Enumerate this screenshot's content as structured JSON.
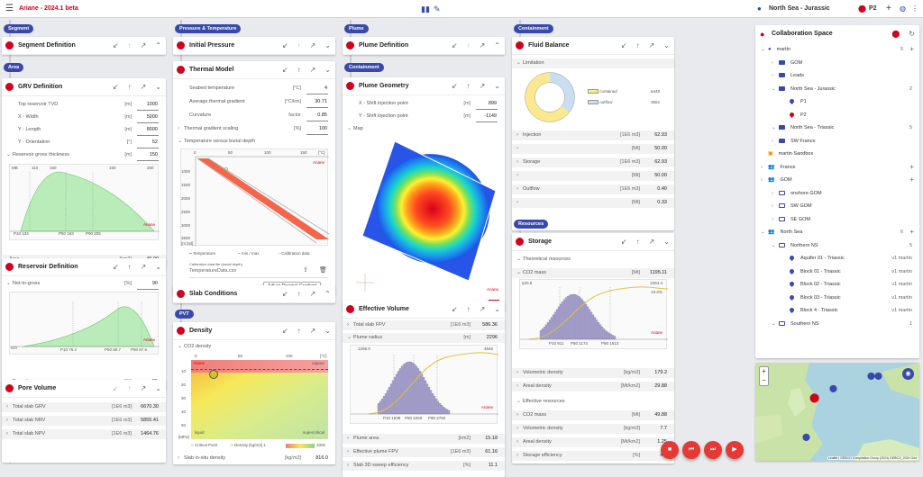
{
  "app": {
    "title": "Ariane - 2024.1 beta",
    "project": "North Sea - Jurassic",
    "location": "P2"
  },
  "lanes": {
    "segment": "Segment",
    "area": "Area",
    "pressure": "Pressure & Temperature",
    "pvt": "PVT",
    "plume": "Plume",
    "containment_plume": "Containment",
    "containment": "Containment",
    "resources": "Resources"
  },
  "segment_def": {
    "title": "Segment Definition"
  },
  "grv": {
    "title": "GRV Definition",
    "rows": [
      {
        "label": "Top reservoir TVD",
        "unit": "[m]",
        "value": "1000"
      },
      {
        "label": "X - Width",
        "unit": "[m]",
        "value": "5000"
      },
      {
        "label": "Y - Length",
        "unit": "[m]",
        "value": "8000"
      },
      {
        "label": "Y - Orientation",
        "unit": "[°]",
        "value": "52"
      },
      {
        "label": "Reservoir gross thickness",
        "unit": "[m]",
        "value": "150"
      }
    ],
    "ticks_top": [
      "110",
      "150",
      "150",
      "250"
    ],
    "tick_prefix": "MB",
    "pvals": {
      "p10": "134",
      "p50": "163",
      "p90": "205"
    },
    "plabels": {
      "p10": "P10",
      "p50": "P50",
      "p90": "P90"
    },
    "brand": "Ariane",
    "area_label": "Area",
    "area_unit": "[km2]",
    "area_value": "40.00"
  },
  "reservoir": {
    "title": "Reservoir Definition",
    "ntg_label": "Net-to-gross",
    "ntg_unit": "[%]",
    "ntg_value": "90",
    "pvals": {
      "p10": "76.4",
      "p50": "88.7",
      "p90": "97.6"
    },
    "go": "GO",
    "porosity_label": "Porosity",
    "porosity_unit": "[%]",
    "porosity_value": "25",
    "brand": "Ariane"
  },
  "pore_volume": {
    "title": "Pore Volume",
    "rows": [
      {
        "label": "Total slab GRV",
        "unit": "[1E6 m3]",
        "value": "6670.30"
      },
      {
        "label": "Total slab NRV",
        "unit": "[1E6 m3]",
        "value": "5855.41"
      },
      {
        "label": "Total slab NPV",
        "unit": "[1E6 m3]",
        "value": "1464.76"
      }
    ]
  },
  "initial_pressure": {
    "title": "Initial Pressure"
  },
  "thermal": {
    "title": "Thermal Model",
    "rows": [
      {
        "label": "Seabed temperature",
        "unit": "[°C]",
        "value": "4"
      },
      {
        "label": "Average thermal gradient",
        "unit": "[°C/km]",
        "value": "30.71"
      },
      {
        "label": "Curvature",
        "unit": "factor",
        "value": "0.85"
      },
      {
        "label": "Thermal gradient scaling",
        "unit": "[%]",
        "value": "100"
      }
    ],
    "chart_title": "Temperature versus burial depth",
    "x_ticks": [
      "0",
      "50",
      "100",
      "150"
    ],
    "x_unit": "[°C]",
    "y_ticks": [
      "1000",
      "1500",
      "2000",
      "2500",
      "3000",
      "3500"
    ],
    "y_unit": "[m bsl]",
    "brand": "Ariane",
    "legend": {
      "temperature": "Temperature",
      "minmax": "min / max",
      "calib": "Calibration data"
    },
    "calib_placeholder": "Calibration data file (burial depth)",
    "calib_file": "TemperatureData.csv",
    "adjust": "Adjust Thermal Gradient"
  },
  "slab": {
    "title": "Slab Conditions"
  },
  "density": {
    "title": "Density",
    "sub": "CO2 density",
    "x_ticks": [
      "0",
      "50",
      "100"
    ],
    "x_unit": "[°C]",
    "y_ticks": [
      "10",
      "20",
      "30",
      "40",
      "50"
    ],
    "y_unit": "[MPa]",
    "brand": "Ariane",
    "vapour": "vapour",
    "liquid": "liquid",
    "supercritical": "supercritical",
    "legend": {
      "critical": "Critical Point",
      "density": "Density",
      "unit": "[kg/m3]",
      "min": "1",
      "max": "1000"
    },
    "insitu_label": "Slab in-situ density",
    "insitu_unit": "[kg/m3]",
    "insitu_value": "816.0"
  },
  "plume_def": {
    "title": "Plume Definition"
  },
  "plume_geom": {
    "title": "Plume Geometry",
    "rows": [
      {
        "label": "X - Shift injection point",
        "unit": "[m]",
        "value": "899"
      },
      {
        "label": "Y - Shift injection point",
        "unit": "[m]",
        "value": "-1149"
      }
    ],
    "map": "Map",
    "brand": "Ariane",
    "legend": [
      "P10",
      "P50",
      "P90"
    ],
    "legend_max": "1164"
  },
  "eff_volume": {
    "title": "Effective Volume",
    "total_label": "Total slab FPV",
    "total_unit": "[1E6 m3]",
    "total_value": "586.36",
    "radius_label": "Plume radius",
    "radius_unit": "[m]",
    "radius_value": "2296",
    "h_min": "1296.9",
    "h_max": "4646",
    "pvals": {
      "p10": "1838",
      "p50": "2260",
      "p90": "2792"
    },
    "brand": "Ariane",
    "rows": [
      {
        "label": "Plume area",
        "unit": "[km2]",
        "value": "15.18"
      },
      {
        "label": "Effective plume FPV",
        "unit": "[1E6 m3]",
        "value": "61.16"
      },
      {
        "label": "Slab 3D sweep efficiency",
        "unit": "[%]",
        "value": "11.1"
      }
    ]
  },
  "fluid_balance": {
    "title": "Fluid Balance",
    "limitation": "Limitation",
    "legend": [
      {
        "label": "contained",
        "value": "6448",
        "color": "#fbe88f"
      },
      {
        "label": "outflow",
        "value": "3552",
        "color": "#c9def0"
      }
    ],
    "rows": [
      {
        "label": "Injection",
        "unit": "[1E6 m3]",
        "value": "62.93"
      },
      {
        "label": "",
        "unit": "[Mt]",
        "value": "50.00"
      },
      {
        "label": "Storage",
        "unit": "[1E6 m3]",
        "value": "62.93"
      },
      {
        "label": "",
        "unit": "[Mt]",
        "value": "50.00"
      },
      {
        "label": "Outflow",
        "unit": "[1E6 m3]",
        "value": "0.40"
      },
      {
        "label": "",
        "unit": "[Mt]",
        "value": "0.33"
      }
    ]
  },
  "storage": {
    "title": "Storage",
    "theoretical": "Theoretical resources",
    "co2_label": "CO2 mass",
    "co2_unit": "[Mt]",
    "co2_value": "1195.11",
    "h_min": "620.9",
    "h_max": "2264.4",
    "pct": "10.0%",
    "pvals": {
      "p10": "911",
      "p50": "1174",
      "p90": "1513"
    },
    "brand": "Ariane",
    "rows": [
      {
        "label": "Volumetric density",
        "unit": "[kg/m3]",
        "value": "179.2"
      },
      {
        "label": "Areal density",
        "unit": "[Mt/km2]",
        "value": "29.88"
      }
    ],
    "effective": "Effective resources",
    "rows2": [
      {
        "label": "CO2 mass",
        "unit": "[Mt]",
        "value": "49.88"
      },
      {
        "label": "Volumetric density",
        "unit": "[kg/m3]",
        "value": "7.7"
      },
      {
        "label": "Areal density",
        "unit": "[Mt/km2]",
        "value": "1.25"
      },
      {
        "label": "Storage efficiency",
        "unit": "[%]",
        "value": "4.3"
      }
    ]
  },
  "collab": {
    "title": "Collaboration Space",
    "tree": [
      {
        "label": "martin",
        "icon": "person",
        "indent": 0,
        "right": "5",
        "plus": true
      },
      {
        "label": "GOM",
        "icon": "folder",
        "indent": 1,
        "right": ""
      },
      {
        "label": "Leads",
        "icon": "folder",
        "indent": 1,
        "right": ""
      },
      {
        "label": "North Sea - Jurassic",
        "icon": "folder",
        "indent": 1,
        "right": "2"
      },
      {
        "label": "P1",
        "icon": "pin-blue",
        "indent": 2,
        "right": ""
      },
      {
        "label": "P2",
        "icon": "pin-red",
        "indent": 2,
        "right": ""
      },
      {
        "label": "North Sea - Triassic",
        "icon": "folder",
        "indent": 1,
        "right": "5"
      },
      {
        "label": "SW France",
        "icon": "folder",
        "indent": 1,
        "right": ""
      },
      {
        "label": "martin Sandbox",
        "icon": "sandbox",
        "indent": 0,
        "right": ""
      },
      {
        "label": "France",
        "icon": "people",
        "indent": 0,
        "right": "",
        "plus": true
      },
      {
        "label": "GOM",
        "icon": "people",
        "indent": 0,
        "right": "",
        "plus": true
      },
      {
        "label": "onshore GOM",
        "icon": "folder-o",
        "indent": 1,
        "right": ""
      },
      {
        "label": "SW GOM",
        "icon": "folder-o",
        "indent": 1,
        "right": ""
      },
      {
        "label": "SE GOM",
        "icon": "folder-o",
        "indent": 1,
        "right": ""
      },
      {
        "label": "North Sea",
        "icon": "people",
        "indent": 0,
        "right": "6",
        "plus": true
      },
      {
        "label": "Northern NS",
        "icon": "folder-o",
        "indent": 1,
        "right": "5"
      },
      {
        "label": "Aquifer 01 - Triassic",
        "icon": "pin-blue",
        "indent": 2,
        "right": "v1 martin"
      },
      {
        "label": "Block 01 - Triassic",
        "icon": "pin-blue",
        "indent": 2,
        "right": "v1 martin"
      },
      {
        "label": "Block 02 - Triassic",
        "icon": "pin-blue",
        "indent": 2,
        "right": "v1 martin"
      },
      {
        "label": "Block 03 - Triassic",
        "icon": "pin-blue",
        "indent": 2,
        "right": "v1 martin"
      },
      {
        "label": "Block 4 - Triassic",
        "icon": "pin-blue",
        "indent": 2,
        "right": "v1 martin"
      },
      {
        "label": "Southern NS",
        "icon": "folder-o",
        "indent": 1,
        "right": "1"
      }
    ],
    "map_credit": "Leaflet | GEBCO Compilation Group (2024) GEBCO_2024 Grid"
  },
  "colors": {
    "accent": "#d0021b",
    "lane": "#3949ab"
  }
}
